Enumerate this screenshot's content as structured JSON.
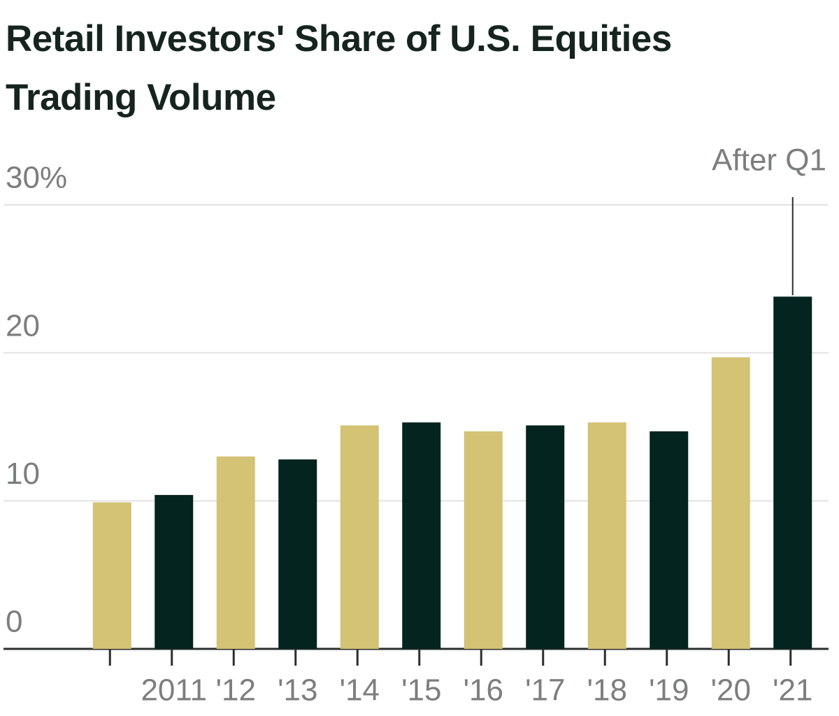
{
  "chart_data": {
    "type": "bar",
    "title": "Retail Investors' Share of U.S. Equities Trading Volume",
    "categories": [
      null,
      "2011",
      "'12",
      "'13",
      "'14",
      "'15",
      "'16",
      "'17",
      "'18",
      "'19",
      "'20",
      "'21"
    ],
    "values": [
      9.9,
      10.4,
      13.0,
      12.8,
      15.1,
      15.3,
      14.7,
      15.1,
      15.3,
      14.7,
      19.7,
      23.8
    ],
    "colors": [
      "#d4c275",
      "#03241f",
      "#d4c275",
      "#03241f",
      "#d4c275",
      "#03241f",
      "#d4c275",
      "#03241f",
      "#d4c275",
      "#03241f",
      "#d4c275",
      "#03241f"
    ],
    "ylim": [
      0,
      30
    ],
    "yticks": [
      0,
      10,
      20,
      {
        "value": 30,
        "label": "30%"
      }
    ],
    "grid": true,
    "annotations": [
      {
        "text": "After Q1",
        "category_index": 11
      }
    ]
  }
}
